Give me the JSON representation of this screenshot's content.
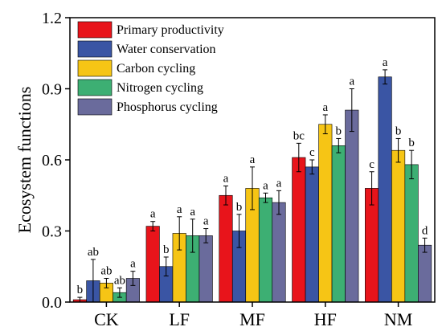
{
  "chart_data": {
    "type": "bar",
    "ylabel": "Ecosystem functions",
    "xlabel": "",
    "ylim": [
      0,
      1.2
    ],
    "yticks": [
      "0.0",
      "0.3",
      "0.6",
      "0.9",
      "1.2"
    ],
    "ytick_values": [
      0,
      0.3,
      0.6,
      0.9,
      1.2
    ],
    "categories": [
      "CK",
      "LF",
      "MF",
      "HF",
      "NM"
    ],
    "legend_position": "top-left",
    "error_bars": true,
    "series": [
      {
        "name": "Primary productivity",
        "color": "#e8141b",
        "values": [
          0.01,
          0.32,
          0.45,
          0.61,
          0.48
        ],
        "errors": [
          0.01,
          0.02,
          0.04,
          0.06,
          0.07
        ],
        "labels": [
          "b",
          "a",
          "a",
          "bc",
          "c"
        ]
      },
      {
        "name": "Water conservation",
        "color": "#3a55a4",
        "values": [
          0.09,
          0.15,
          0.3,
          0.57,
          0.95
        ],
        "errors": [
          0.09,
          0.04,
          0.07,
          0.03,
          0.03
        ],
        "labels": [
          "ab",
          "b",
          "b",
          "c",
          "a"
        ]
      },
      {
        "name": "Carbon cycling",
        "color": "#f6c515",
        "values": [
          0.08,
          0.29,
          0.48,
          0.75,
          0.64
        ],
        "errors": [
          0.02,
          0.07,
          0.09,
          0.04,
          0.05
        ],
        "labels": [
          "ab",
          "a",
          "a",
          "a",
          "b"
        ]
      },
      {
        "name": "Nitrogen cycling",
        "color": "#3daf73",
        "values": [
          0.04,
          0.28,
          0.44,
          0.66,
          0.58
        ],
        "errors": [
          0.02,
          0.07,
          0.02,
          0.03,
          0.06
        ],
        "labels": [
          "ab",
          "a",
          "a",
          "b",
          "b"
        ]
      },
      {
        "name": "Phosphorus cycling",
        "color": "#6a6b9c",
        "values": [
          0.1,
          0.28,
          0.42,
          0.81,
          0.24
        ],
        "errors": [
          0.03,
          0.03,
          0.05,
          0.09,
          0.03
        ],
        "labels": [
          "a",
          "a",
          "a",
          "a",
          "d"
        ]
      }
    ]
  }
}
